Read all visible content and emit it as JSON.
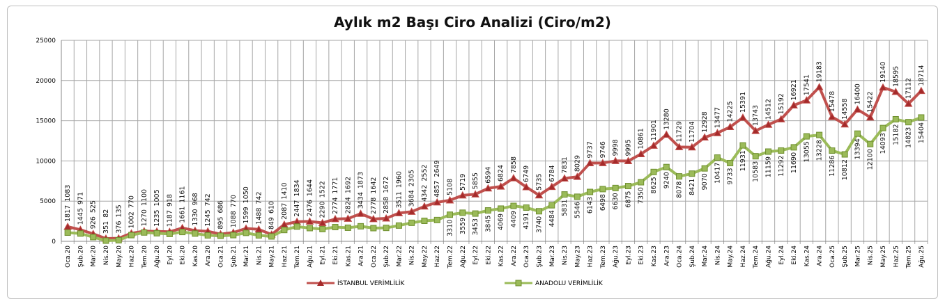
{
  "chart_data": {
    "type": "line",
    "title": "Aylık m2 Başı Ciro Analizi (Ciro/m2)",
    "xlabel": "",
    "ylabel": "",
    "ylim": [
      0,
      25000
    ],
    "yticks": [
      0,
      5000,
      10000,
      15000,
      20000,
      25000
    ],
    "grid": true,
    "legend": "bottom",
    "categories": [
      "Oca.20",
      "Şub.20",
      "Mar.20",
      "Nis.20",
      "May.20",
      "Haz.20",
      "Tem.20",
      "Ağu.20",
      "Eyl.20",
      "Eki.20",
      "Kas.20",
      "Ara.20",
      "Oca.21",
      "Şub.21",
      "Mar.21",
      "Nis.21",
      "May.21",
      "Haz.21",
      "Tem.21",
      "Ağu.21",
      "Eyl.21",
      "Eki.21",
      "Kas.21",
      "Ara.21",
      "Oca.22",
      "Şub.22",
      "Mar.22",
      "Nis.22",
      "May.22",
      "Haz.22",
      "Tem.22",
      "Ağu.22",
      "Eyl.22",
      "Eki.22",
      "Kas.22",
      "Ara.22",
      "Oca.23",
      "Şub.23",
      "Mar.23",
      "Nis.23",
      "May.23",
      "Haz.23",
      "Tem.23",
      "Ağu.23",
      "Eyl.23",
      "Eki.23",
      "Kas.23",
      "Ara.23",
      "Oca.24",
      "Şub.24",
      "Mar.24",
      "Nis.24",
      "May.24",
      "Haz.24",
      "Tem.24",
      "Ağu.24",
      "Eyl.24",
      "Eki.24",
      "Kas.24",
      "Ara.24",
      "Oca.25",
      "Şub.25",
      "Mar.25",
      "Nis.25",
      "May.25",
      "Haz.25",
      "Tem.25",
      "Ağu.25"
    ],
    "series": [
      {
        "name": "İSTANBUL VERİMLİLİK",
        "color": "#c0504d",
        "marker": "triangle",
        "values": [
          1817,
          1445,
          926,
          351,
          376,
          1002,
          1270,
          1235,
          1187,
          1661,
          1330,
          1245,
          895,
          1088,
          1599,
          1488,
          849,
          2087,
          2447,
          2476,
          2290,
          2774,
          2824,
          3434,
          2778,
          2858,
          3511,
          3684,
          4342,
          4857,
          5108,
          5719,
          5855,
          6594,
          6824,
          7858,
          6749,
          5735,
          6784,
          7831,
          8029,
          9737,
          9746,
          9998,
          9995,
          10861,
          11901,
          13280,
          11729,
          11704,
          12928,
          13477,
          14225,
          15391,
          13743,
          14512,
          15192,
          16921,
          17541,
          19183,
          15478,
          14558,
          16400,
          15422,
          19140,
          18595,
          17112,
          18714
        ]
      },
      {
        "name": "ANADOLU VERİMLİLİK",
        "color": "#9bbb59",
        "marker": "square",
        "values": [
          1083,
          971,
          525,
          82,
          135,
          770,
          1100,
          1005,
          918,
          1161,
          968,
          742,
          686,
          770,
          1050,
          742,
          610,
          1410,
          1834,
          1644,
          1522,
          1771,
          1692,
          1873,
          1642,
          1672,
          1960,
          2305,
          2552,
          2649,
          3310,
          3559,
          3453,
          3845,
          4069,
          4409,
          4191,
          3740,
          4484,
          5831,
          5546,
          6143,
          6498,
          6630,
          6875,
          7350,
          8625,
          9240,
          8078,
          8421,
          9070,
          10417,
          9733,
          11931,
          10583,
          11159,
          11292,
          11690,
          13055,
          13228,
          11286,
          10812,
          13394,
          12100,
          14093,
          15182,
          14823,
          15404
        ]
      }
    ]
  }
}
